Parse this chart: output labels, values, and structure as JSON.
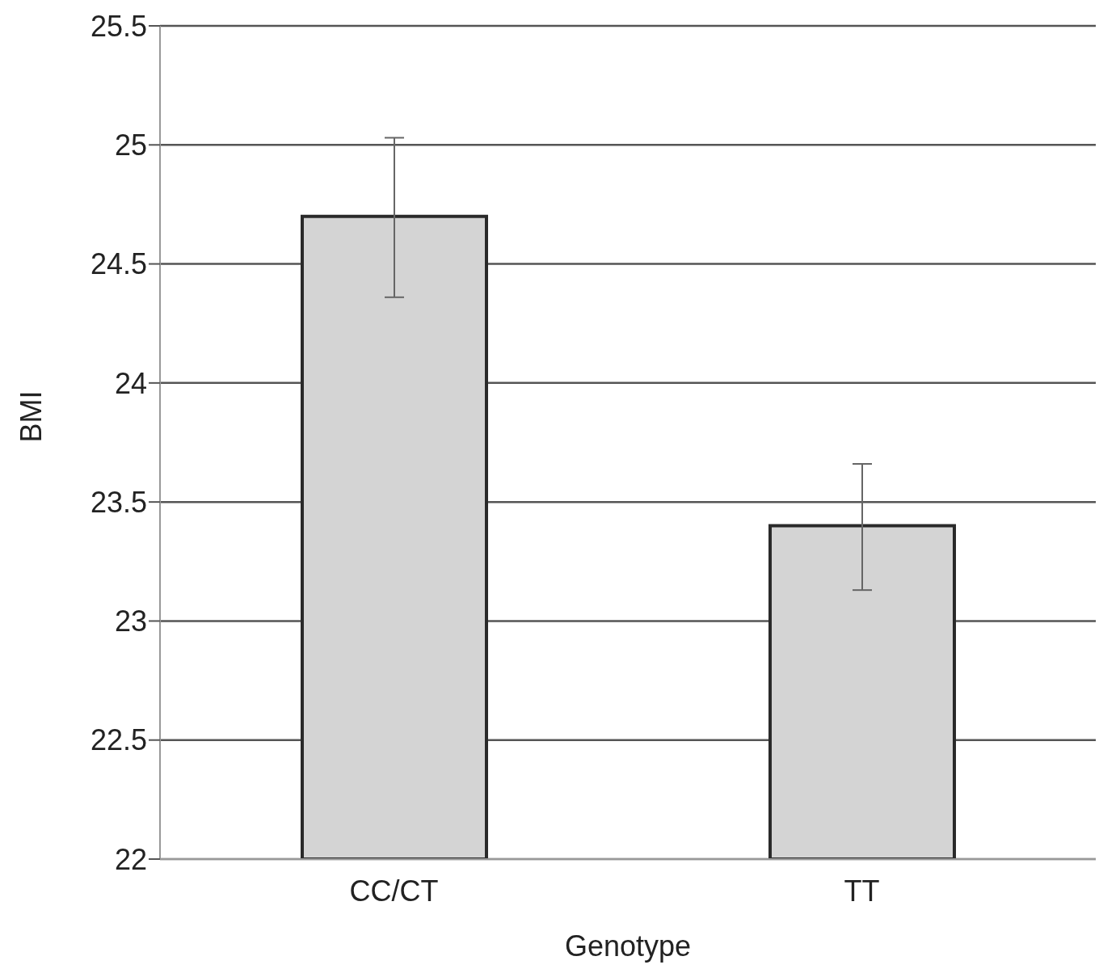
{
  "chart_data": {
    "type": "bar",
    "xlabel": "Genotype",
    "ylabel": "BMI",
    "categories": [
      "CC/CT",
      "TT"
    ],
    "values": [
      24.7,
      23.4
    ],
    "errors": [
      [
        24.36,
        25.03
      ],
      [
        23.13,
        23.66
      ]
    ],
    "color": "#d4d4d4",
    "ylim": [
      22,
      25.5
    ],
    "yticks": [
      22,
      22.5,
      23,
      23.5,
      24,
      24.5,
      25,
      25.5
    ],
    "grid": "y"
  }
}
